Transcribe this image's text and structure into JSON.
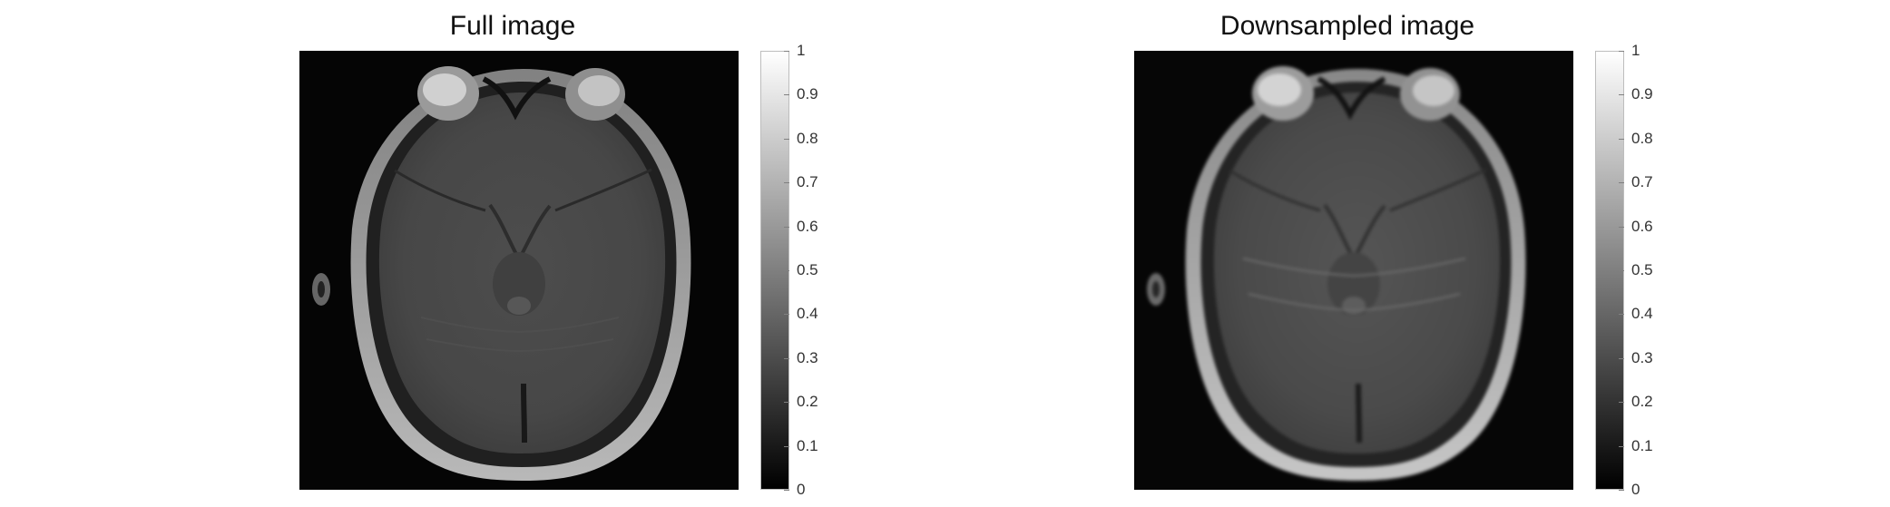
{
  "panels": [
    {
      "title": "Full image",
      "image_alt": "axial MRI brain slice"
    },
    {
      "title": "Downsampled image",
      "image_alt": "axial MRI brain slice"
    }
  ],
  "colorbar": {
    "min": 0,
    "max": 1,
    "ticks": [
      "0",
      "0.1",
      "0.2",
      "0.3",
      "0.4",
      "0.5",
      "0.6",
      "0.7",
      "0.8",
      "0.9",
      "1"
    ],
    "colors": {
      "low": "#000000",
      "high": "#ffffff"
    }
  }
}
